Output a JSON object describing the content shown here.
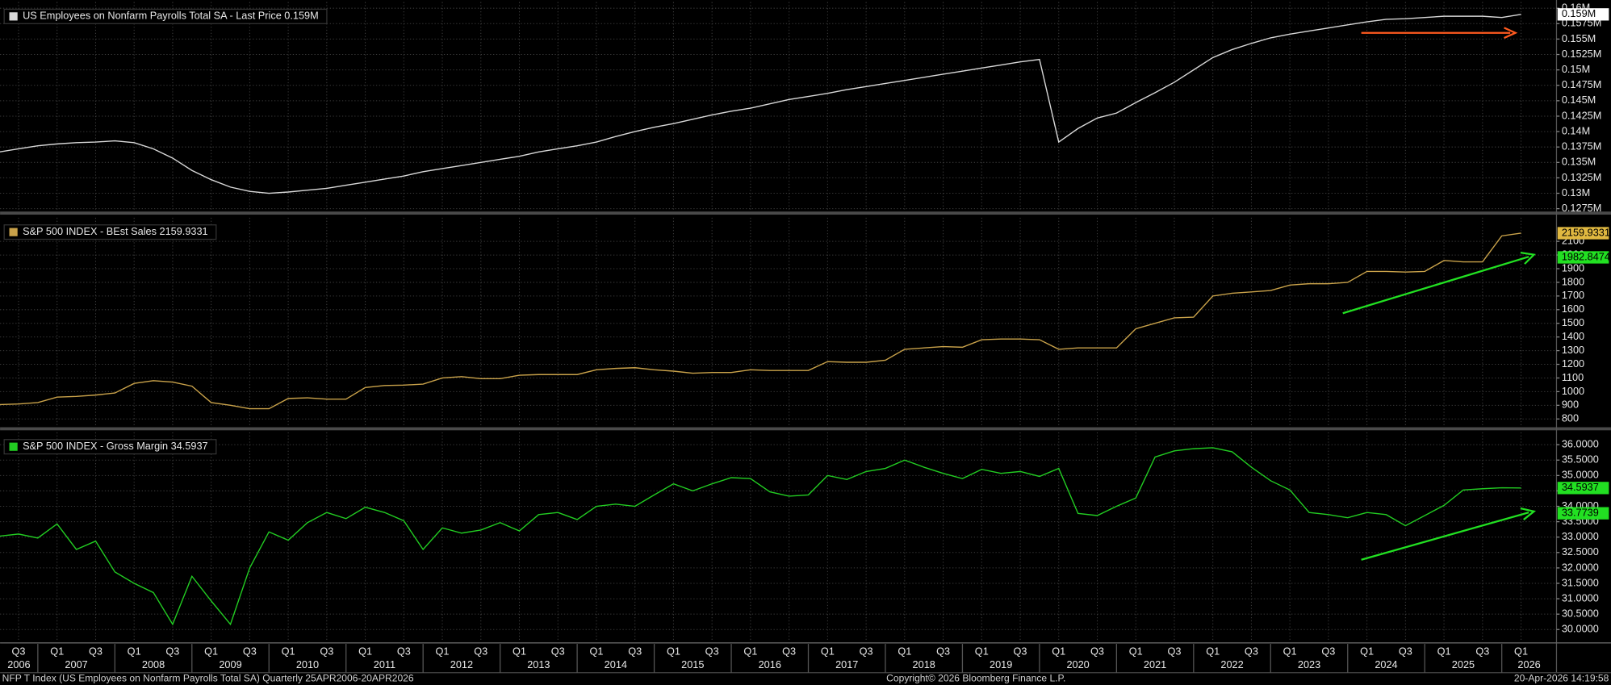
{
  "x_axis": {
    "x": [
      2006.5,
      2006.75,
      2007,
      2007.25,
      2007.5,
      2007.75,
      2008,
      2008.25,
      2008.5,
      2008.75,
      2009,
      2009.25,
      2009.5,
      2009.75,
      2010,
      2010.25,
      2010.5,
      2010.75,
      2011,
      2011.25,
      2011.5,
      2011.75,
      2012,
      2012.25,
      2012.5,
      2012.75,
      2013,
      2013.25,
      2013.5,
      2013.75,
      2014,
      2014.25,
      2014.5,
      2014.75,
      2015,
      2015.25,
      2015.5,
      2015.75,
      2016,
      2016.25,
      2016.5,
      2016.75,
      2017,
      2017.25,
      2017.5,
      2017.75,
      2018,
      2018.25,
      2018.5,
      2018.75,
      2019,
      2019.25,
      2019.5,
      2019.75,
      2020,
      2020.25,
      2020.5,
      2020.75,
      2021,
      2021.25,
      2021.5,
      2021.75,
      2022,
      2022.25,
      2022.5,
      2022.75,
      2023,
      2023.25,
      2023.5,
      2023.75,
      2024,
      2024.25,
      2024.5,
      2024.75,
      2025,
      2025.25,
      2025.5,
      2025.75,
      2026,
      2026.25
    ],
    "xlim": [
      2006.51,
      2026.71
    ],
    "xticks": [
      {
        "value": 2006.75,
        "label": "Q3"
      },
      {
        "value": 2007.25,
        "label": "Q1"
      },
      {
        "value": 2007.75,
        "label": "Q3"
      },
      {
        "value": 2008.25,
        "label": "Q1"
      },
      {
        "value": 2008.75,
        "label": "Q3"
      },
      {
        "value": 2009.25,
        "label": "Q1"
      },
      {
        "value": 2009.75,
        "label": "Q3"
      },
      {
        "value": 2010.25,
        "label": "Q1"
      },
      {
        "value": 2010.75,
        "label": "Q3"
      },
      {
        "value": 2011.25,
        "label": "Q1"
      },
      {
        "value": 2011.75,
        "label": "Q3"
      },
      {
        "value": 2012.25,
        "label": "Q1"
      },
      {
        "value": 2012.75,
        "label": "Q3"
      },
      {
        "value": 2013.25,
        "label": "Q1"
      },
      {
        "value": 2013.75,
        "label": "Q3"
      },
      {
        "value": 2014.25,
        "label": "Q1"
      },
      {
        "value": 2014.75,
        "label": "Q3"
      },
      {
        "value": 2015.25,
        "label": "Q1"
      },
      {
        "value": 2015.75,
        "label": "Q3"
      },
      {
        "value": 2016.25,
        "label": "Q1"
      },
      {
        "value": 2016.75,
        "label": "Q3"
      },
      {
        "value": 2017.25,
        "label": "Q1"
      },
      {
        "value": 2017.75,
        "label": "Q3"
      },
      {
        "value": 2018.25,
        "label": "Q1"
      },
      {
        "value": 2018.75,
        "label": "Q3"
      },
      {
        "value": 2019.25,
        "label": "Q1"
      },
      {
        "value": 2019.75,
        "label": "Q3"
      },
      {
        "value": 2020.25,
        "label": "Q1"
      },
      {
        "value": 2020.75,
        "label": "Q3"
      },
      {
        "value": 2021.25,
        "label": "Q1"
      },
      {
        "value": 2021.75,
        "label": "Q3"
      },
      {
        "value": 2022.25,
        "label": "Q1"
      },
      {
        "value": 2022.75,
        "label": "Q3"
      },
      {
        "value": 2023.25,
        "label": "Q1"
      },
      {
        "value": 2023.75,
        "label": "Q3"
      },
      {
        "value": 2024.25,
        "label": "Q1"
      },
      {
        "value": 2024.75,
        "label": "Q3"
      },
      {
        "value": 2025.25,
        "label": "Q1"
      },
      {
        "value": 2025.75,
        "label": "Q3"
      },
      {
        "value": 2026.25,
        "label": "Q1"
      }
    ],
    "years": [
      2006,
      2007,
      2008,
      2009,
      2010,
      2011,
      2012,
      2013,
      2014,
      2015,
      2016,
      2017,
      2018,
      2019,
      2020,
      2021,
      2022,
      2023,
      2024,
      2025,
      2026
    ],
    "grid": true
  },
  "chart_data": [
    {
      "type": "line",
      "series": [
        {
          "name": "US Employees on Nonfarm Payrolls Total SA - Last Price 0.159M",
          "color": "#d8d8d8",
          "values": [
            0.1367,
            0.1372,
            0.1377,
            0.138,
            0.1382,
            0.1383,
            0.1385,
            0.1382,
            0.1372,
            0.1357,
            0.1337,
            0.1322,
            0.131,
            0.1303,
            0.13,
            0.1302,
            0.1305,
            0.1308,
            0.1313,
            0.1318,
            0.1323,
            0.1328,
            0.1335,
            0.134,
            0.1345,
            0.135,
            0.1355,
            0.136,
            0.1367,
            0.1372,
            0.1377,
            0.1383,
            0.1392,
            0.14,
            0.1407,
            0.1413,
            0.142,
            0.1427,
            0.1433,
            0.1438,
            0.1445,
            0.1452,
            0.1457,
            0.1462,
            0.1468,
            0.1473,
            0.1478,
            0.1483,
            0.1488,
            0.1493,
            0.1498,
            0.1503,
            0.1508,
            0.1513,
            0.1517,
            0.1383,
            0.1405,
            0.1422,
            0.143,
            0.1447,
            0.1463,
            0.148,
            0.15,
            0.152,
            0.1533,
            0.1543,
            0.1552,
            0.1558,
            0.1563,
            0.1568,
            0.1573,
            0.1578,
            0.1582,
            0.1583,
            0.1585,
            0.1587,
            0.1587,
            0.1587,
            0.1585,
            0.159
          ]
        }
      ],
      "ylim": [
        0.1272,
        0.161
      ],
      "yticks": [
        {
          "value": 0.1275,
          "label": "0.1275M"
        },
        {
          "value": 0.13,
          "label": "0.13M"
        },
        {
          "value": 0.1325,
          "label": "0.1325M"
        },
        {
          "value": 0.135,
          "label": "0.135M"
        },
        {
          "value": 0.1375,
          "label": "0.1375M"
        },
        {
          "value": 0.14,
          "label": "0.14M"
        },
        {
          "value": 0.1425,
          "label": "0.1425M"
        },
        {
          "value": 0.145,
          "label": "0.145M"
        },
        {
          "value": 0.1475,
          "label": "0.1475M"
        },
        {
          "value": 0.15,
          "label": "0.15M"
        },
        {
          "value": 0.1525,
          "label": "0.1525M"
        },
        {
          "value": 0.155,
          "label": "0.155M"
        },
        {
          "value": 0.1575,
          "label": "0.1575M"
        },
        {
          "value": 0.16,
          "label": "0.16M"
        }
      ],
      "price_tags": [
        {
          "value": 0.159,
          "label": "0.159M",
          "color": "#ffffff"
        }
      ],
      "grid": true
    },
    {
      "type": "line",
      "series": [
        {
          "name": "S&P 500 INDEX - BEst Sales 2159.9331",
          "color": "#c9a24a",
          "values": [
            905,
            910,
            920,
            960,
            965,
            975,
            990,
            1060,
            1080,
            1070,
            1040,
            920,
            900,
            875,
            875,
            950,
            955,
            945,
            945,
            1030,
            1045,
            1048,
            1055,
            1100,
            1110,
            1095,
            1095,
            1120,
            1125,
            1125,
            1125,
            1160,
            1170,
            1175,
            1160,
            1150,
            1135,
            1140,
            1140,
            1160,
            1155,
            1155,
            1155,
            1220,
            1215,
            1215,
            1230,
            1310,
            1320,
            1330,
            1325,
            1380,
            1385,
            1385,
            1380,
            1310,
            1320,
            1320,
            1320,
            1460,
            1500,
            1540,
            1545,
            1700,
            1720,
            1730,
            1740,
            1780,
            1790,
            1790,
            1800,
            1880,
            1880,
            1875,
            1880,
            1960,
            1950,
            1950,
            2140,
            2159.9331
          ]
        }
      ],
      "ylim": [
        747,
        2273
      ],
      "yticks": [
        800,
        900,
        1000,
        1100,
        1200,
        1300,
        1400,
        1500,
        1600,
        1700,
        1800,
        1900,
        2000,
        2100
      ],
      "price_tags": [
        {
          "value": 2159.9331,
          "color": "#e0b840"
        },
        {
          "value": 1982.8474,
          "color": "#22e022"
        }
      ],
      "grid": true
    },
    {
      "type": "line",
      "series": [
        {
          "name": "S&P 500 INDEX - Gross Margin 34.5937",
          "color": "#22cc22",
          "values": [
            33.03,
            33.1,
            32.97,
            33.43,
            32.6,
            32.87,
            31.87,
            31.5,
            31.2,
            30.17,
            31.73,
            30.93,
            30.17,
            32.0,
            33.17,
            32.9,
            33.47,
            33.8,
            33.6,
            33.97,
            33.8,
            33.53,
            32.6,
            33.3,
            33.13,
            33.23,
            33.47,
            33.2,
            33.73,
            33.8,
            33.57,
            34.0,
            34.07,
            34.0,
            34.37,
            34.73,
            34.5,
            34.73,
            34.93,
            34.9,
            34.47,
            34.33,
            34.37,
            35.0,
            34.87,
            35.13,
            35.23,
            35.5,
            35.27,
            35.07,
            34.9,
            35.2,
            35.07,
            35.13,
            34.97,
            35.23,
            33.77,
            33.7,
            34.0,
            34.27,
            35.6,
            35.8,
            35.87,
            35.9,
            35.77,
            35.27,
            34.83,
            34.53,
            33.8,
            33.73,
            33.63,
            33.8,
            33.73,
            33.37,
            33.7,
            34.03,
            34.53,
            34.57,
            34.6,
            34.5937
          ]
        }
      ],
      "ylim": [
        29.6,
        36.4
      ],
      "yticks": [
        {
          "value": 30,
          "label": "30.0000"
        },
        {
          "value": 30.5,
          "label": "30.5000"
        },
        {
          "value": 31,
          "label": "31.0000"
        },
        {
          "value": 31.5,
          "label": "31.5000"
        },
        {
          "value": 32,
          "label": "32.0000"
        },
        {
          "value": 32.5,
          "label": "32.5000"
        },
        {
          "value": 33,
          "label": "33.0000"
        },
        {
          "value": 33.5,
          "label": "33.5000"
        },
        {
          "value": 34,
          "label": "34.0000"
        },
        {
          "value": 34.5,
          "label": "34.5000"
        },
        {
          "value": 35,
          "label": "35.0000"
        },
        {
          "value": 35.5,
          "label": "35.5000"
        },
        {
          "value": 36,
          "label": "36.0000"
        }
      ],
      "price_tags": [
        {
          "value": 34.5937,
          "color": "#22e022"
        },
        {
          "value": 33.7739,
          "color": "#22e022"
        }
      ],
      "grid": true
    }
  ],
  "footer": {
    "left": "NFP T Index (US Employees on Nonfarm Payrolls Total SA) Quarterly 25APR2006-20APR2026",
    "center": "Copyright© 2026 Bloomberg Finance L.P.",
    "right": "20-Apr-2026 14:19:58"
  }
}
